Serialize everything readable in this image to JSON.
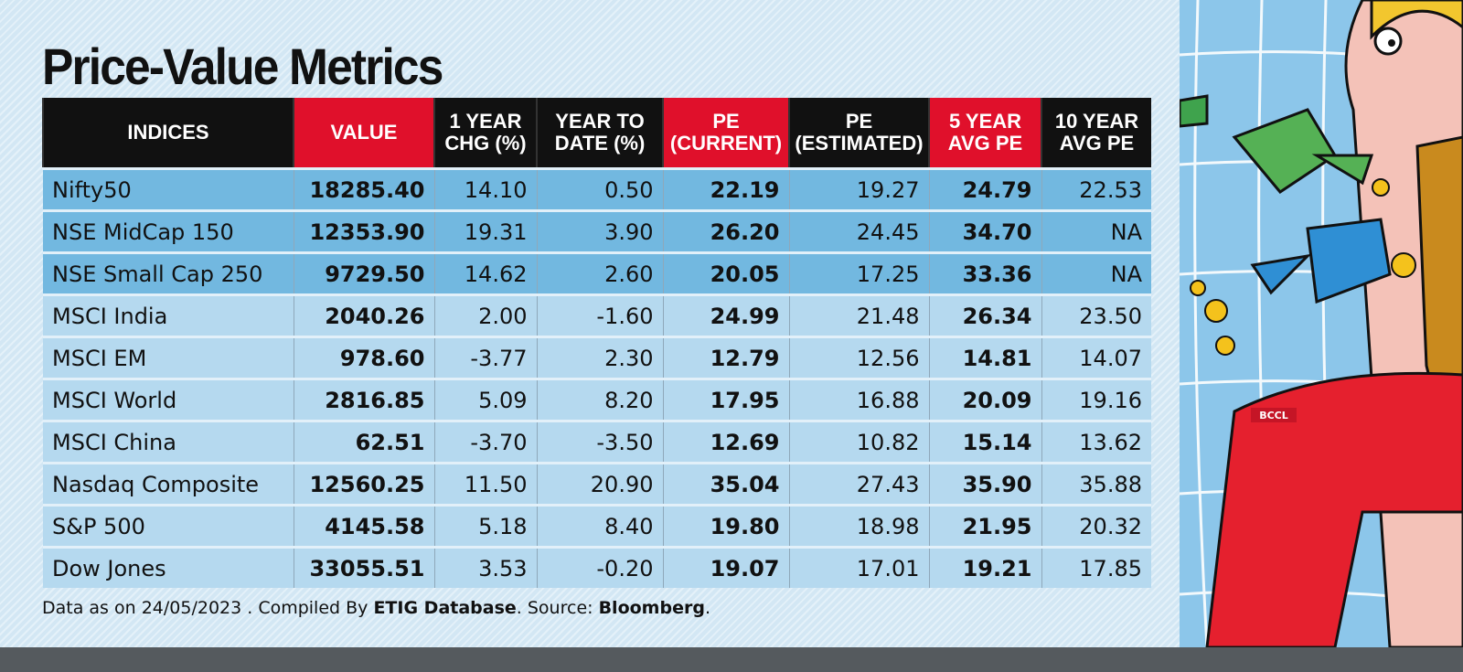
{
  "title": "Price-Value Metrics",
  "table": {
    "headers": [
      {
        "line1": "INDICES",
        "line2": "",
        "highlight": false
      },
      {
        "line1": "VALUE",
        "line2": "",
        "highlight": true
      },
      {
        "line1": "1 YEAR",
        "line2": "CHG (%)",
        "highlight": false
      },
      {
        "line1": "YEAR TO",
        "line2": "DATE (%)",
        "highlight": false
      },
      {
        "line1": "PE",
        "line2": "(CURRENT)",
        "highlight": true
      },
      {
        "line1": "PE",
        "line2": "(ESTIMATED)",
        "highlight": false
      },
      {
        "line1": "5 YEAR",
        "line2": "AVG PE",
        "highlight": true
      },
      {
        "line1": "10 YEAR",
        "line2": "AVG PE",
        "highlight": false
      }
    ],
    "rows": [
      [
        "Nifty50",
        "18285.40",
        "14.10",
        "0.50",
        "22.19",
        "19.27",
        "24.79",
        "22.53"
      ],
      [
        "NSE MidCap 150",
        "12353.90",
        "19.31",
        "3.90",
        "26.20",
        "24.45",
        "34.70",
        "NA"
      ],
      [
        "NSE Small Cap 250",
        "9729.50",
        "14.62",
        "2.60",
        "20.05",
        "17.25",
        "33.36",
        "NA"
      ],
      [
        "MSCI India",
        "2040.26",
        "2.00",
        "-1.60",
        "24.99",
        "21.48",
        "26.34",
        "23.50"
      ],
      [
        "MSCI EM",
        "978.60",
        "-3.77",
        "2.30",
        "12.79",
        "12.56",
        "14.81",
        "14.07"
      ],
      [
        "MSCI World",
        "2816.85",
        "5.09",
        "8.20",
        "17.95",
        "16.88",
        "20.09",
        "19.16"
      ],
      [
        "MSCI China",
        "62.51",
        "-3.70",
        "-3.50",
        "12.69",
        "10.82",
        "15.14",
        "13.62"
      ],
      [
        "Nasdaq Composite",
        "12560.25",
        "11.50",
        "20.90",
        "35.04",
        "27.43",
        "35.90",
        "35.88"
      ],
      [
        "S&P 500",
        "4145.58",
        "5.18",
        "8.40",
        "19.80",
        "18.98",
        "21.95",
        "20.32"
      ],
      [
        "Dow Jones",
        "33055.51",
        "3.53",
        "-0.20",
        "19.07",
        "17.01",
        "19.21",
        "17.85"
      ]
    ]
  },
  "footer": {
    "prefix": "Data as on 24/05/2023 . Compiled By ",
    "compiler": "ETIG Database",
    "mid": ". Source: ",
    "source": "Bloomberg",
    "suffix": "."
  },
  "illustration": {
    "credit": "BCCL",
    "description_icon": "man-watering-coins-illustration"
  },
  "colors": {
    "header_black": "#111111",
    "header_red": "#e0102b",
    "row_dark": "#72b8e0",
    "row_light": "#b5d9ef"
  }
}
